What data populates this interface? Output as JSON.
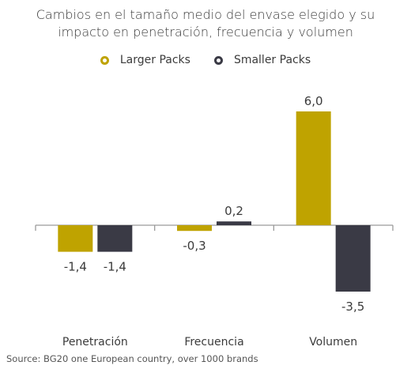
{
  "title_line1": "Cambios en el tamaño medio del envase elegido y su",
  "title_line2": "impacto en penetración, frecuencia y volumen",
  "source": "Source: BG20 one European country, over 1000 brands",
  "colors": {
    "larger": "#bfa300",
    "smaller": "#3a3a45",
    "axis": "#9a9a9a"
  },
  "chart_data": {
    "type": "bar",
    "categories": [
      "Penetración",
      "Frecuencia",
      "Volumen"
    ],
    "series": [
      {
        "name": "Larger Packs",
        "values": [
          -1.4,
          -0.3,
          6.0
        ],
        "labels": [
          "-1,4",
          "-0,3",
          "6,0"
        ]
      },
      {
        "name": "Smaller Packs",
        "values": [
          -1.4,
          0.2,
          -3.5
        ],
        "labels": [
          "-1,4",
          "0,2",
          "-3,5"
        ]
      }
    ],
    "title": "Cambios en el tamaño medio del envase elegido y su impacto en penetración, frecuencia y volumen",
    "legend": "top-center",
    "grid": false
  }
}
